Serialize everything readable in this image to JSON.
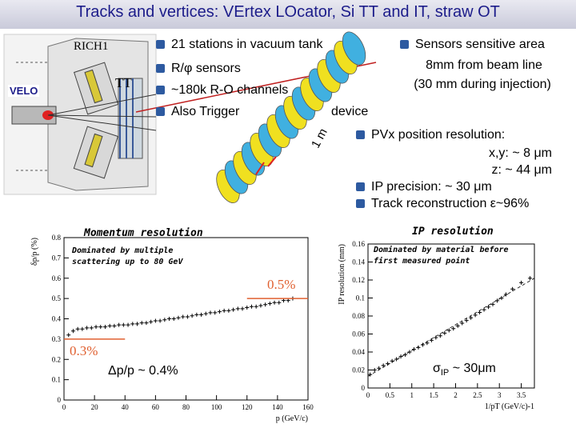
{
  "slide": {
    "title": "Tracks and vertices: VErtex LOcator, Si TT and IT, straw OT"
  },
  "detector_labels": {
    "rich": "RICH1",
    "tt": "TT",
    "velo": "VELO",
    "length": "1 m"
  },
  "bullets_top": [
    "21 stations in vacuum tank",
    "R/φ sensors",
    "~180k R-O channels",
    "Also Trigger"
  ],
  "device_word": "device",
  "sensor_note": {
    "line1": "Sensors sensitive area",
    "line2": "8mm from beam line",
    "line3": "(30 mm during injection)"
  },
  "resolution_bullets": {
    "pv_label": "PVx position resolution:",
    "pv_xy": "x,y: ~  8 μm",
    "pv_z": "z: ~ 44 μm",
    "ip_precision": "IP precision: ~ 30 μm",
    "track_reco": "Track reconstruction ε~96%"
  },
  "momentum_chart": {
    "title": "Momentum resolution",
    "note_line1": "Dominated by multiple",
    "note_line2": "scattering up to 80 GeV",
    "label_high": "0.5%",
    "label_low": "0.3%",
    "summary": "Δp/p ~ 0.4%",
    "colors": {
      "annotation": "#e06030",
      "points": "#000000"
    }
  },
  "ip_chart": {
    "title": "IP resolution",
    "note_line1": "Dominated by material before",
    "note_line2": "first measured point",
    "summary_prefix": "σ",
    "summary_sub": "IP",
    "summary_suffix": " ~ 30μm"
  },
  "chart_data": [
    {
      "type": "scatter",
      "title": "Momentum resolution",
      "xlabel": "p (GeV/c)",
      "ylabel": "δp/p (%)",
      "xlim": [
        0,
        160
      ],
      "ylim": [
        0,
        0.8
      ],
      "xticks": [
        0,
        20,
        40,
        60,
        80,
        100,
        120,
        140,
        160
      ],
      "yticks": [
        0,
        0.1,
        0.2,
        0.3,
        0.4,
        0.5,
        0.6,
        0.7,
        0.8
      ],
      "x": [
        3,
        6,
        9,
        12,
        15,
        18,
        21,
        24,
        27,
        30,
        33,
        36,
        39,
        42,
        45,
        48,
        51,
        54,
        57,
        60,
        63,
        66,
        69,
        72,
        75,
        78,
        81,
        84,
        87,
        90,
        93,
        96,
        99,
        102,
        105,
        108,
        111,
        114,
        117,
        120,
        123,
        126,
        129,
        132,
        135,
        138,
        141,
        144,
        147,
        150
      ],
      "y": [
        0.32,
        0.34,
        0.35,
        0.35,
        0.355,
        0.355,
        0.36,
        0.36,
        0.36,
        0.365,
        0.365,
        0.37,
        0.37,
        0.37,
        0.375,
        0.375,
        0.38,
        0.38,
        0.385,
        0.39,
        0.39,
        0.395,
        0.4,
        0.4,
        0.405,
        0.41,
        0.41,
        0.415,
        0.42,
        0.42,
        0.425,
        0.43,
        0.43,
        0.435,
        0.44,
        0.44,
        0.445,
        0.45,
        0.45,
        0.455,
        0.46,
        0.46,
        0.465,
        0.47,
        0.475,
        0.48,
        0.48,
        0.49,
        0.49,
        0.5
      ],
      "grid": false
    },
    {
      "type": "scatter",
      "title": "IP resolution",
      "xlabel": "1/pT (GeV/c)-1",
      "ylabel": "IP resolution (mm)",
      "xlim": [
        0,
        3.8
      ],
      "ylim": [
        0,
        0.16
      ],
      "xticks": [
        0,
        0.5,
        1,
        1.5,
        2,
        2.5,
        3,
        3.5
      ],
      "xtick_labels": [
        "0",
        "0.5",
        "1",
        "1.5",
        "2",
        "2.5",
        "3",
        "3.5"
      ],
      "yticks": [
        0,
        0.02,
        0.04,
        0.06,
        0.08,
        0.1,
        0.12,
        0.14,
        0.16
      ],
      "x": [
        0.05,
        0.15,
        0.25,
        0.35,
        0.45,
        0.55,
        0.65,
        0.75,
        0.85,
        0.95,
        1.05,
        1.15,
        1.25,
        1.35,
        1.45,
        1.55,
        1.65,
        1.75,
        1.85,
        1.95,
        2.05,
        2.15,
        2.25,
        2.35,
        2.45,
        2.55,
        2.65,
        2.75,
        2.85,
        2.95,
        3.05,
        3.15,
        3.3,
        3.5,
        3.7
      ],
      "y": [
        0.015,
        0.02,
        0.022,
        0.025,
        0.027,
        0.03,
        0.032,
        0.035,
        0.037,
        0.04,
        0.043,
        0.045,
        0.048,
        0.05,
        0.053,
        0.056,
        0.058,
        0.061,
        0.064,
        0.066,
        0.069,
        0.072,
        0.075,
        0.078,
        0.081,
        0.084,
        0.087,
        0.09,
        0.093,
        0.097,
        0.1,
        0.104,
        0.11,
        0.117,
        0.122
      ],
      "grid": false
    }
  ]
}
